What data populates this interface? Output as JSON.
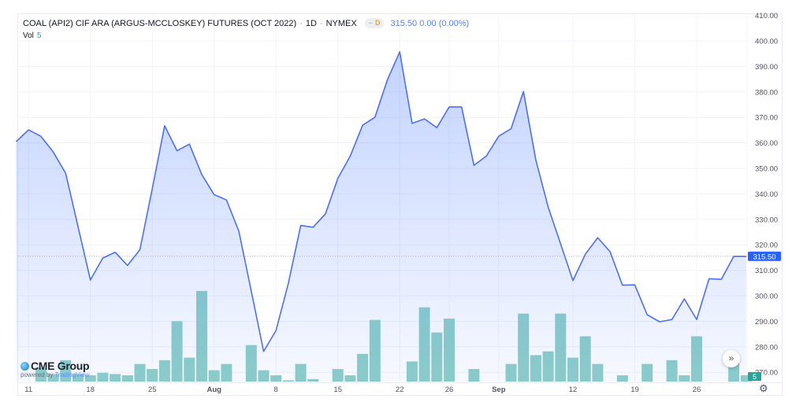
{
  "header": {
    "symbol_title": "COAL (API2) CIF ARA (ARGUS-MCCLOSKEY) FUTURES (OCT 2022)",
    "interval": "1D",
    "exchange": "NYMEX",
    "badge_label": "D",
    "last_price": "315.50",
    "change": "0.00",
    "change_pct": "(0.00%)"
  },
  "volume_legend": {
    "label": "Vol",
    "value": "5"
  },
  "branding": {
    "logo_text": "CME Group",
    "powered_by": "powered by",
    "provider": "TradingView"
  },
  "controls": {
    "scroll_right_icon": "double-chevron-right-icon",
    "settings_icon": "gear-icon"
  },
  "colors": {
    "line": "#4d6ef5",
    "fill": "#2962ff",
    "volume": "#8ecfc8",
    "price_label_bg": "#2962ff",
    "volume_label_bg": "#26a69a"
  },
  "chart_data": {
    "type": "area",
    "title": "COAL (API2) CIF ARA (ARGUS-MCCLOSKEY) FUTURES (OCT 2022)",
    "ylim": [
      265,
      410
    ],
    "y_ticks": [
      "410.00",
      "400.00",
      "390.00",
      "380.00",
      "370.00",
      "360.00",
      "350.00",
      "340.00",
      "330.00",
      "320.00",
      "310.00",
      "300.00",
      "290.00",
      "280.00",
      "270.00"
    ],
    "y_tick_values": [
      410,
      400,
      390,
      380,
      370,
      360,
      350,
      340,
      330,
      320,
      310,
      300,
      290,
      280,
      270
    ],
    "x_ticks": [
      {
        "label": "11",
        "date": "2022-07-11",
        "bold": false
      },
      {
        "label": "18",
        "date": "2022-07-18",
        "bold": false
      },
      {
        "label": "25",
        "date": "2022-07-25",
        "bold": false
      },
      {
        "label": "Aug",
        "date": "2022-08-01",
        "bold": true
      },
      {
        "label": "8",
        "date": "2022-08-08",
        "bold": false
      },
      {
        "label": "15",
        "date": "2022-08-15",
        "bold": false
      },
      {
        "label": "22",
        "date": "2022-08-22",
        "bold": false
      },
      {
        "label": "26",
        "date": "2022-08-26",
        "bold": false
      },
      {
        "label": "Sep",
        "date": "2022-09-01",
        "bold": true
      },
      {
        "label": "12",
        "date": "2022-09-12",
        "bold": false
      },
      {
        "label": "19",
        "date": "2022-09-19",
        "bold": false
      },
      {
        "label": "26",
        "date": "2022-09-26",
        "bold": false
      }
    ],
    "grid": true,
    "last_price_label": "315.50",
    "last_price": 315.5,
    "last_volume_label": "5",
    "dates": [
      "2022-07-08",
      "2022-07-11",
      "2022-07-12",
      "2022-07-13",
      "2022-07-14",
      "2022-07-15",
      "2022-07-18",
      "2022-07-19",
      "2022-07-20",
      "2022-07-21",
      "2022-07-22",
      "2022-07-25",
      "2022-07-26",
      "2022-07-27",
      "2022-07-28",
      "2022-07-29",
      "2022-08-01",
      "2022-08-02",
      "2022-08-03",
      "2022-08-04",
      "2022-08-05",
      "2022-08-08",
      "2022-08-09",
      "2022-08-10",
      "2022-08-11",
      "2022-08-12",
      "2022-08-15",
      "2022-08-16",
      "2022-08-17",
      "2022-08-18",
      "2022-08-19",
      "2022-08-22",
      "2022-08-23",
      "2022-08-24",
      "2022-08-25",
      "2022-08-26",
      "2022-08-29",
      "2022-08-30",
      "2022-08-31",
      "2022-09-01",
      "2022-09-02",
      "2022-09-06",
      "2022-09-07",
      "2022-09-08",
      "2022-09-09",
      "2022-09-12",
      "2022-09-13",
      "2022-09-14",
      "2022-09-15",
      "2022-09-16",
      "2022-09-19",
      "2022-09-20",
      "2022-09-21",
      "2022-09-22",
      "2022-09-23",
      "2022-09-26",
      "2022-09-27",
      "2022-09-28",
      "2022-09-29",
      "2022-09-30"
    ],
    "series": [
      {
        "values": [
          360.5,
          365.1,
          362.6,
          356.4,
          348.1,
          327.2,
          306.2,
          314.8,
          317.1,
          311.9,
          318.1,
          342,
          366.7,
          356.9,
          359.5,
          347.6,
          339.7,
          337.6,
          325.3,
          301.9,
          278.2,
          286.4,
          304.9,
          327.6,
          326.9,
          332.2,
          346.1,
          354.8,
          366.9,
          370.1,
          384.7,
          395.7,
          367.7,
          369.4,
          366,
          374.1,
          374.1,
          351.2,
          354.8,
          362.6,
          365.6,
          380.2,
          353.3,
          334.8,
          320.4,
          306,
          316.3,
          322.8,
          317.3,
          304.2,
          304.3,
          292.6,
          289.8,
          290.7,
          298.8,
          290.7,
          306.7,
          306.5,
          315.5,
          315.5
        ]
      },
      {
        "name": "Vol",
        "type": "bar",
        "values": [
          0,
          0,
          11,
          6,
          17,
          6,
          5,
          7,
          6,
          5,
          14,
          10,
          17,
          48,
          19,
          72,
          9,
          14,
          0,
          29,
          9,
          5,
          1,
          14,
          2,
          0,
          10,
          5,
          22,
          49,
          0,
          0,
          16,
          59,
          39,
          50,
          0,
          10,
          0,
          0,
          14,
          54,
          21,
          24,
          54,
          19,
          36,
          14,
          0,
          5,
          0,
          14,
          0,
          17,
          5,
          36,
          0,
          0,
          18,
          5
        ]
      }
    ]
  }
}
